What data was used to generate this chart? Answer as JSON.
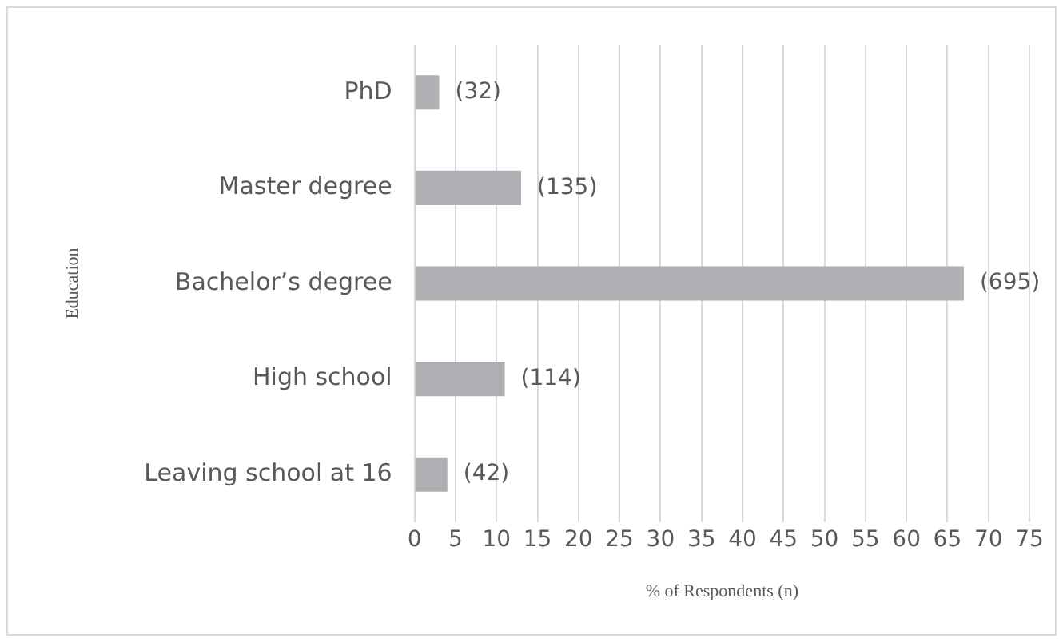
{
  "chart_data": {
    "type": "bar",
    "orientation": "horizontal",
    "xlabel": "% of Respondents (n)",
    "ylabel": "Education",
    "categories": [
      "PhD",
      "Master degree",
      "Bachelor’s degree",
      "High school",
      "Leaving school at 16"
    ],
    "values": [
      3,
      13,
      67,
      11,
      4
    ],
    "annotations": [
      {
        "text": "(32)",
        "x": 3,
        "y": "PhD"
      },
      {
        "text": "(135)",
        "x": 13,
        "y": "Master degree"
      },
      {
        "text": "(695)",
        "x": 67,
        "y": "Bachelor’s degree"
      },
      {
        "text": "(114)",
        "x": 11,
        "y": "High school"
      },
      {
        "text": "(42)",
        "x": 4,
        "y": "Leaving school at 16"
      }
    ],
    "color": "#afb0b3",
    "xlim": [
      0,
      75
    ],
    "xticks": [
      0,
      5,
      10,
      15,
      20,
      25,
      30,
      35,
      40,
      45,
      50,
      55,
      60,
      65,
      70,
      75
    ],
    "grid": "x"
  }
}
